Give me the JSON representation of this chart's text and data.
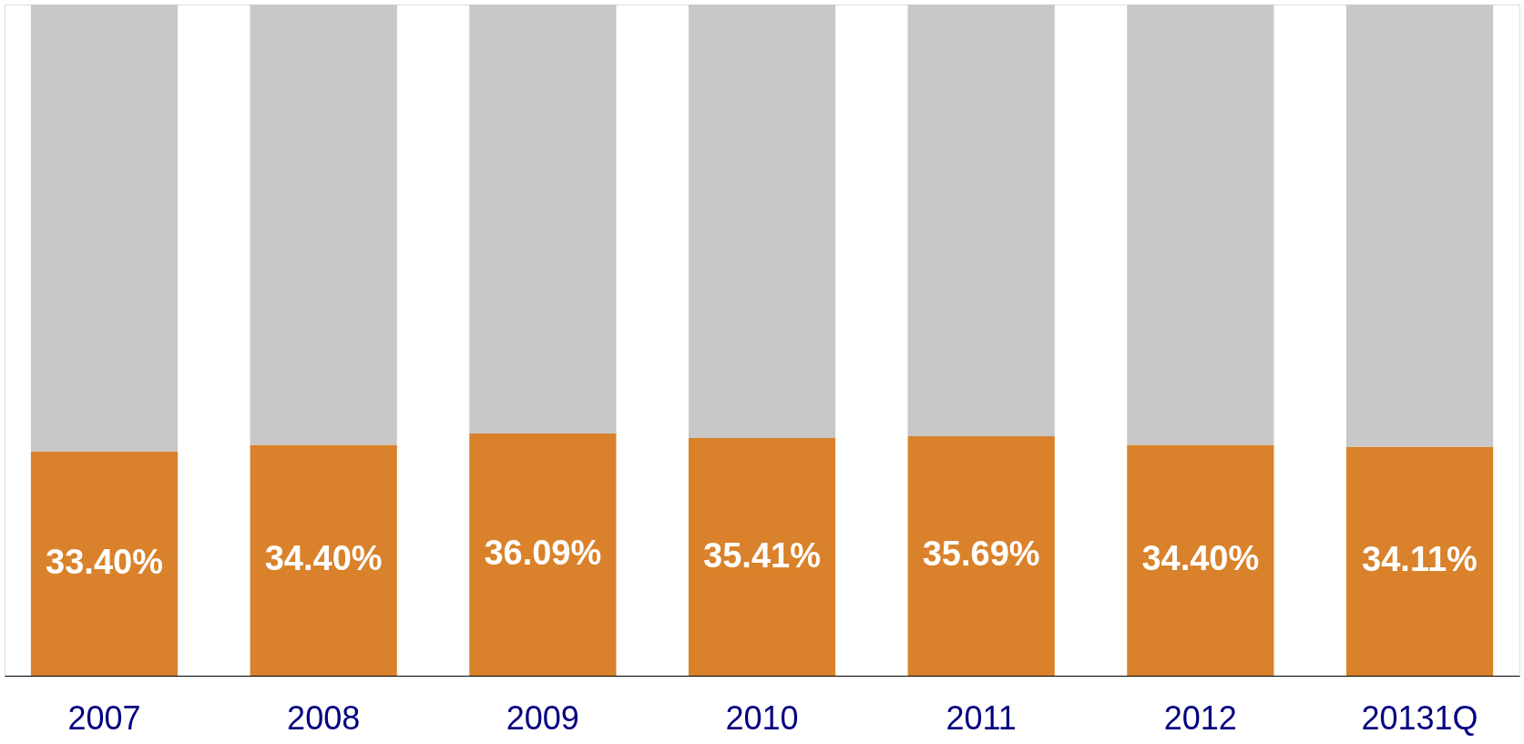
{
  "chart_data": {
    "type": "bar",
    "stacked": true,
    "categories": [
      "2007",
      "2008",
      "2009",
      "2010",
      "2011",
      "2012",
      "20131Q"
    ],
    "ylim": [
      0,
      100
    ],
    "tick_labels": "x",
    "grid": false,
    "series": [
      {
        "color": "#d9822b",
        "values": [
          33.4,
          34.4,
          36.09,
          35.41,
          35.69,
          34.4,
          34.11
        ],
        "value_labels": [
          "33.40%",
          "34.40%",
          "36.09%",
          "35.41%",
          "35.69%",
          "34.40%",
          "34.11%"
        ]
      },
      {
        "color": "#c8c8c8",
        "values": [
          66.6,
          65.6,
          63.91,
          64.59,
          64.31,
          65.6,
          65.89
        ]
      }
    ]
  }
}
